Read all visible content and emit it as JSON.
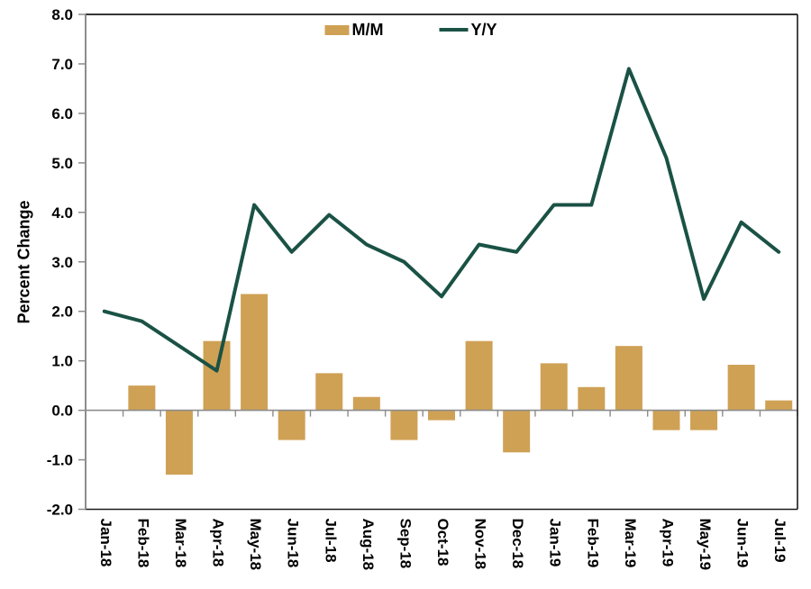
{
  "chart_data": {
    "type": "bar",
    "subtype": "bar-line-combo",
    "title": "",
    "ylabel": "Percent Change",
    "xlabel": "",
    "ylim": [
      -2.0,
      8.0
    ],
    "ytick_labels": [
      "8.0",
      "7.0",
      "6.0",
      "5.0",
      "4.0",
      "3.0",
      "2.0",
      "1.0",
      "0.0",
      "-1.0",
      "-2.0"
    ],
    "grid": false,
    "legend_position": "top-center",
    "categories": [
      "Jan-18",
      "Feb-18",
      "Mar-18",
      "Apr-18",
      "May-18",
      "Jun-18",
      "Jul-18",
      "Aug-18",
      "Sep-18",
      "Oct-18",
      "Nov-18",
      "Dec-18",
      "Jan-19",
      "Feb-19",
      "Mar-19",
      "Apr-19",
      "May-19",
      "Jun-19",
      "Jul-19"
    ],
    "series": [
      {
        "name": "M/M",
        "type": "bar",
        "color": "#CFA155",
        "values": [
          0.0,
          0.5,
          -1.3,
          1.4,
          2.35,
          -0.6,
          0.75,
          0.27,
          -0.6,
          -0.2,
          1.4,
          -0.85,
          0.95,
          0.47,
          1.3,
          -0.4,
          -0.4,
          0.92,
          0.2
        ]
      },
      {
        "name": "Y/Y",
        "type": "line",
        "color": "#1A5245",
        "values": [
          2.0,
          1.8,
          1.3,
          0.8,
          4.15,
          3.2,
          3.95,
          3.35,
          3.0,
          2.3,
          3.35,
          3.2,
          4.15,
          4.15,
          6.9,
          5.1,
          2.25,
          3.8,
          3.2
        ]
      }
    ]
  },
  "legend": {
    "mm_label": "M/M",
    "yy_label": "Y/Y"
  },
  "axis": {
    "y_title": "Percent Change"
  },
  "colors": {
    "bar": "#CFA155",
    "line": "#1A5245",
    "axis_gray": "#8C8C8C",
    "frame_dark": "#1A1A1A",
    "text": "#000000",
    "background": "#FFFFFF"
  }
}
